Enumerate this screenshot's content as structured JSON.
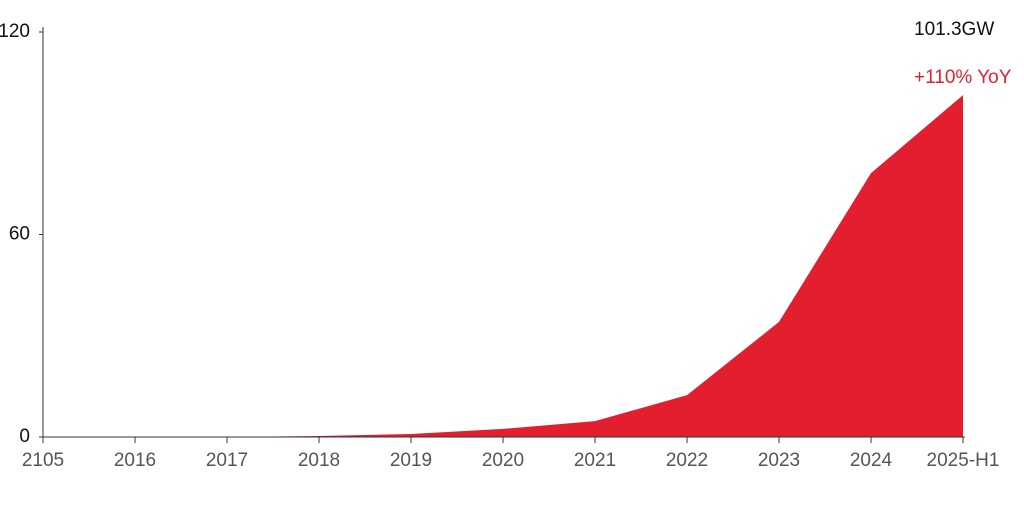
{
  "chart_data": {
    "type": "area",
    "categories": [
      "2105",
      "2016",
      "2017",
      "2018",
      "2019",
      "2020",
      "2021",
      "2022",
      "2023",
      "2024",
      "2025-H1"
    ],
    "values": [
      0,
      0,
      0,
      0.3,
      0.9,
      2.4,
      4.7,
      12.4,
      34.1,
      78.2,
      101.3
    ],
    "color": "#e31f2f",
    "ylim": [
      0,
      120
    ],
    "yticks": [
      0,
      60,
      120
    ],
    "annotations": [
      {
        "text": "101.3GW",
        "color": "#111111"
      },
      {
        "text": "+110% YoY",
        "color": "#e31f2f"
      }
    ]
  }
}
